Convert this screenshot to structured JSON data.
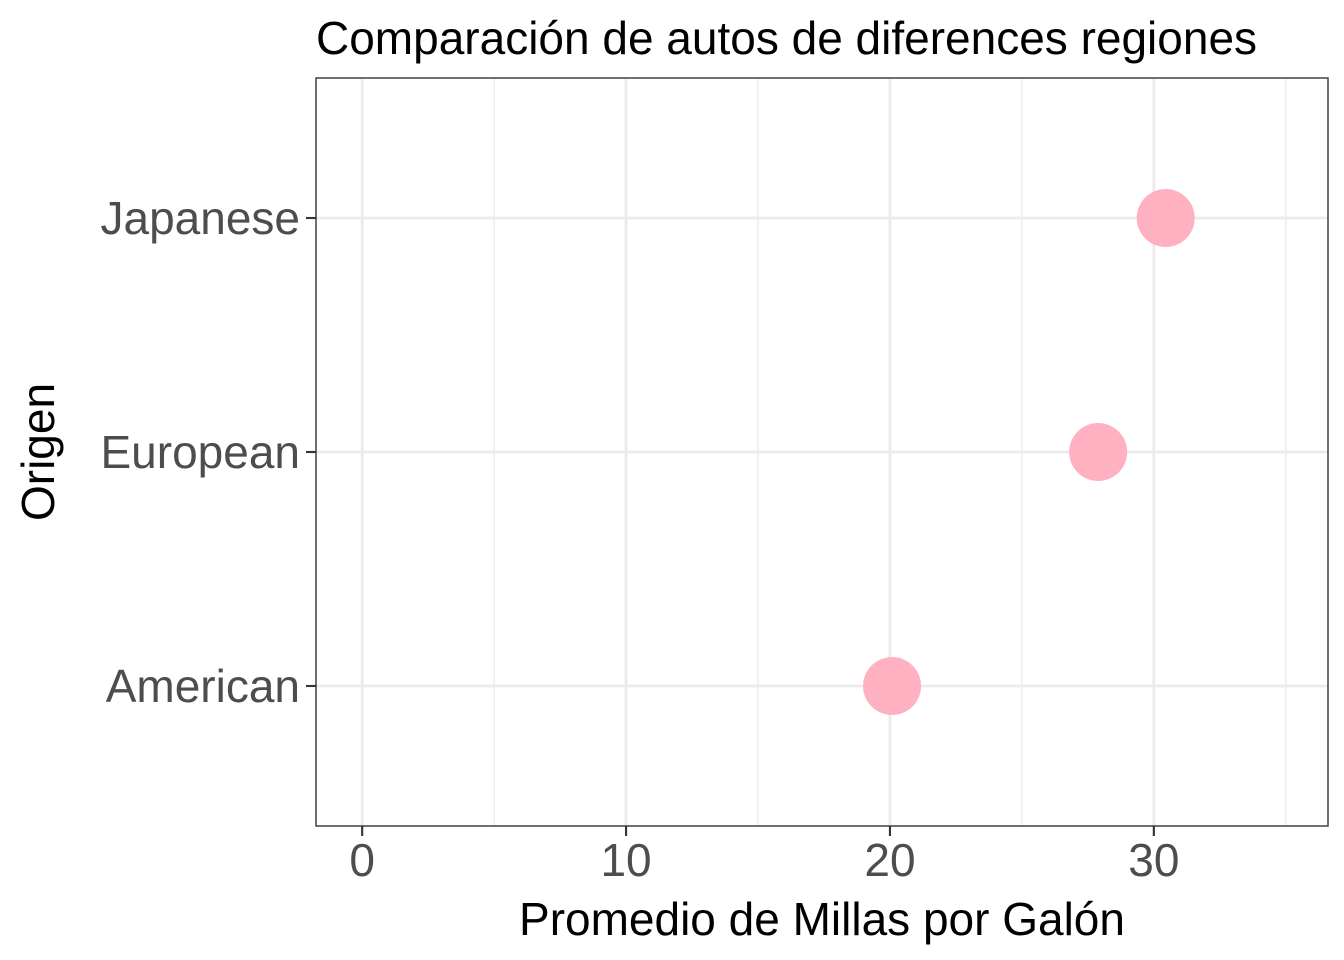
{
  "chart_data": {
    "type": "scatter",
    "title": "Comparación de autos de diferences regiones",
    "xlabel": "Promedio de Millas por Galón",
    "ylabel": "Origen",
    "categories": [
      "American",
      "European",
      "Japanese"
    ],
    "values": [
      20.08,
      27.89,
      30.45
    ],
    "xlim": [
      -1.75,
      36.6
    ],
    "x_ticks": [
      "0",
      "10",
      "20",
      "30"
    ],
    "x_tick_values": [
      0,
      10,
      20,
      30
    ],
    "x_minor_breaks": [
      5,
      15,
      25,
      35
    ],
    "grid": true,
    "point_color": "#FFB0C1",
    "theme": "bw"
  }
}
